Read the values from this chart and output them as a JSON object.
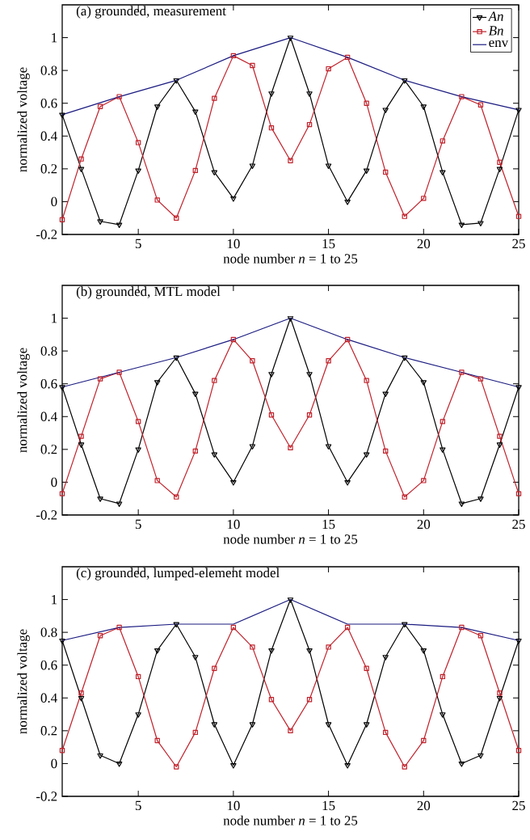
{
  "chart_data": [
    {
      "type": "line",
      "title": "(a) grounded, measurement",
      "xlabel": "node number *n* = 1 to 25",
      "ylabel": "normalized voltage",
      "xlim": [
        1,
        25
      ],
      "ylim": [
        -0.2,
        1.2
      ],
      "xticks": [
        5,
        10,
        15,
        20,
        25
      ],
      "yticks": [
        -0.2,
        0,
        0.2,
        0.4,
        0.6,
        0.8,
        1
      ],
      "legend": "top right",
      "line_style": "solid",
      "x": [
        1,
        2,
        3,
        4,
        5,
        6,
        7,
        8,
        9,
        10,
        11,
        12,
        13,
        14,
        15,
        16,
        17,
        18,
        19,
        20,
        21,
        22,
        23,
        24,
        25
      ],
      "series": [
        {
          "name": "*An*",
          "color": "#000000",
          "marker": "triangle",
          "values": [
            0.53,
            0.2,
            -0.12,
            -0.14,
            0.19,
            0.58,
            0.74,
            0.55,
            0.18,
            0.02,
            0.22,
            0.66,
            1.0,
            0.66,
            0.22,
            0.0,
            0.19,
            0.56,
            0.74,
            0.58,
            0.18,
            -0.14,
            -0.13,
            0.2,
            0.56
          ]
        },
        {
          "name": "*Bn*",
          "color": "#c0202a",
          "marker": "square",
          "values": [
            -0.11,
            0.26,
            0.58,
            0.64,
            0.36,
            0.01,
            -0.1,
            0.19,
            0.63,
            0.89,
            0.83,
            0.45,
            0.25,
            0.47,
            0.81,
            0.88,
            0.6,
            0.18,
            -0.09,
            0.02,
            0.37,
            0.64,
            0.59,
            0.24,
            -0.09
          ]
        },
        {
          "name": "env",
          "color": "#1a1a80",
          "marker": "none",
          "x": [
            1,
            4,
            7,
            10,
            13,
            16,
            19,
            22,
            25
          ],
          "values": [
            0.53,
            0.64,
            0.74,
            0.89,
            1.0,
            0.88,
            0.74,
            0.64,
            0.56
          ]
        }
      ]
    },
    {
      "type": "line",
      "title": "(b) grounded, MTL model",
      "xlabel": "node number *n* = 1 to 25",
      "ylabel": "normalized voltage",
      "xlim": [
        1,
        25
      ],
      "ylim": [
        -0.2,
        1.2
      ],
      "xticks": [
        5,
        10,
        15,
        20,
        25
      ],
      "yticks": [
        -0.2,
        0,
        0.2,
        0.4,
        0.6,
        0.8,
        1
      ],
      "line_style": "solid",
      "x": [
        1,
        2,
        3,
        4,
        5,
        6,
        7,
        8,
        9,
        10,
        11,
        12,
        13,
        14,
        15,
        16,
        17,
        18,
        19,
        20,
        21,
        22,
        23,
        24,
        25
      ],
      "series": [
        {
          "color": "#000000",
          "marker": "triangle",
          "values": [
            0.58,
            0.23,
            -0.1,
            -0.13,
            0.2,
            0.61,
            0.76,
            0.54,
            0.17,
            0.0,
            0.22,
            0.66,
            1.0,
            0.66,
            0.22,
            0.0,
            0.17,
            0.54,
            0.76,
            0.61,
            0.2,
            -0.13,
            -0.1,
            0.23,
            0.58
          ]
        },
        {
          "color": "#c0202a",
          "marker": "square",
          "values": [
            -0.07,
            0.28,
            0.63,
            0.67,
            0.37,
            0.01,
            -0.09,
            0.19,
            0.62,
            0.87,
            0.74,
            0.41,
            0.21,
            0.41,
            0.74,
            0.87,
            0.62,
            0.19,
            -0.09,
            0.01,
            0.37,
            0.67,
            0.63,
            0.28,
            -0.07
          ]
        },
        {
          "color": "#1a1a80",
          "marker": "none",
          "x": [
            1,
            4,
            7,
            10,
            13,
            16,
            19,
            22,
            25
          ],
          "values": [
            0.58,
            0.67,
            0.76,
            0.87,
            1.0,
            0.87,
            0.76,
            0.67,
            0.58
          ]
        }
      ]
    },
    {
      "type": "line",
      "title": "(c) grounded, lumped-element model",
      "xlabel": "node number *n* = 1 to 25",
      "ylabel": "normalized voltage",
      "xlim": [
        1,
        25
      ],
      "ylim": [
        -0.2,
        1.2
      ],
      "xticks": [
        5,
        10,
        15,
        20,
        25
      ],
      "yticks": [
        -0.2,
        0,
        0.2,
        0.4,
        0.6,
        0.8,
        1
      ],
      "line_style": "solid",
      "x": [
        1,
        2,
        3,
        4,
        5,
        6,
        7,
        8,
        9,
        10,
        11,
        12,
        13,
        14,
        15,
        16,
        17,
        18,
        19,
        20,
        21,
        22,
        23,
        24,
        25
      ],
      "series": [
        {
          "color": "#000000",
          "marker": "triangle",
          "values": [
            0.75,
            0.4,
            0.05,
            0.0,
            0.3,
            0.69,
            0.85,
            0.65,
            0.24,
            -0.01,
            0.24,
            0.69,
            1.0,
            0.69,
            0.24,
            -0.01,
            0.24,
            0.65,
            0.85,
            0.69,
            0.3,
            0.0,
            0.05,
            0.4,
            0.75
          ]
        },
        {
          "color": "#c0202a",
          "marker": "square",
          "values": [
            0.08,
            0.43,
            0.78,
            0.83,
            0.53,
            0.14,
            -0.02,
            0.19,
            0.58,
            0.83,
            0.71,
            0.39,
            0.2,
            0.39,
            0.71,
            0.83,
            0.58,
            0.19,
            -0.02,
            0.14,
            0.53,
            0.83,
            0.78,
            0.43,
            0.08
          ]
        },
        {
          "color": "#1a1a80",
          "marker": "none",
          "x": [
            1,
            4,
            7,
            10,
            13,
            16,
            19,
            22,
            25
          ],
          "values": [
            0.75,
            0.83,
            0.85,
            0.85,
            1.0,
            0.85,
            0.85,
            0.83,
            0.75
          ]
        }
      ]
    }
  ]
}
